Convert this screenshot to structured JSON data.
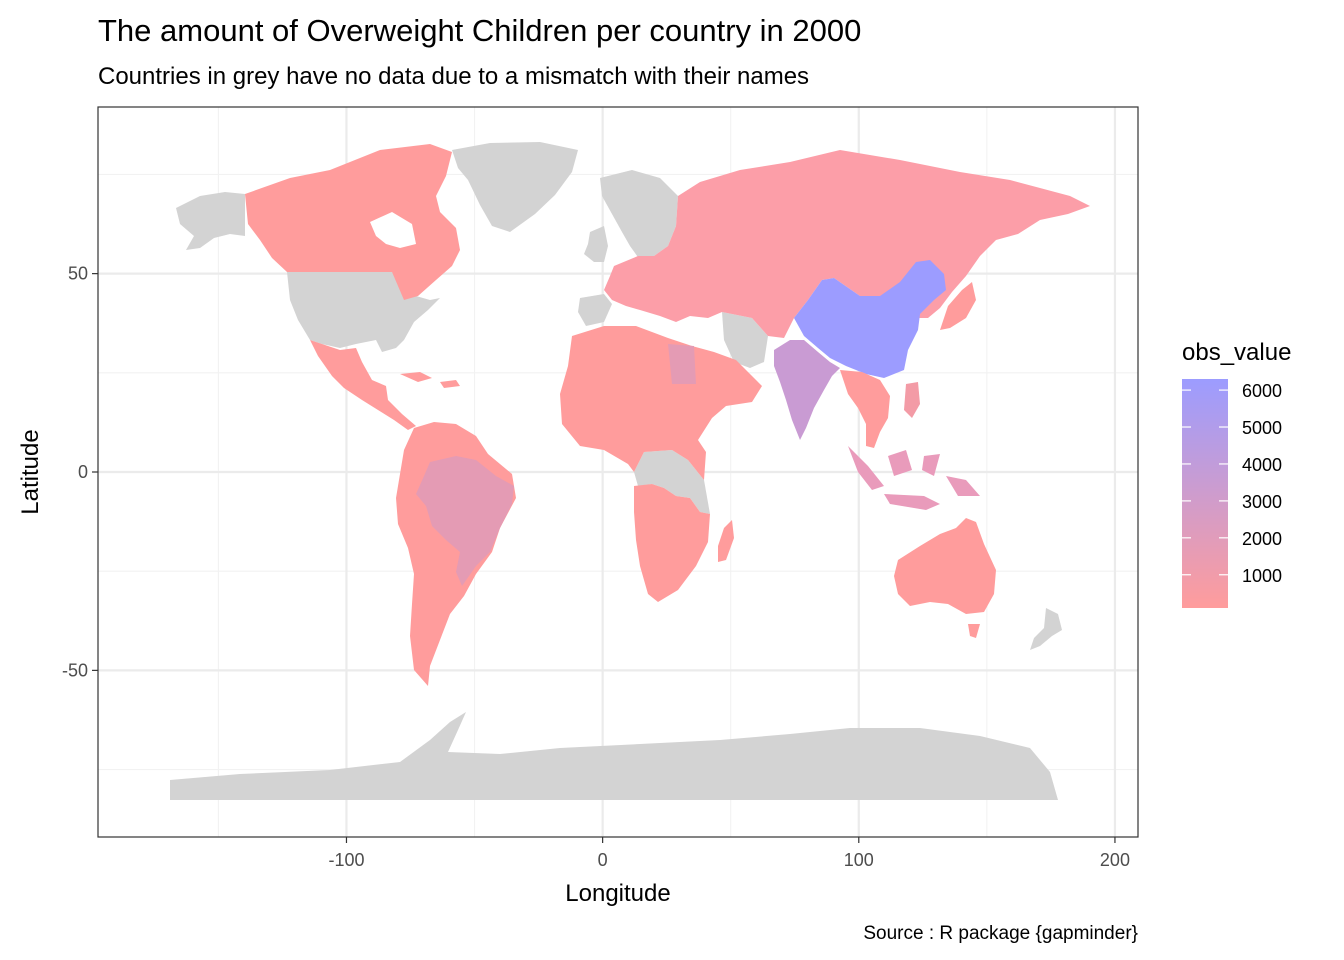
{
  "chart_data": {
    "type": "choropleth",
    "title": "The amount of Overweight Children per country in 2000",
    "subtitle": "Countries in grey have no data due to a mismatch with their names",
    "xlabel": "Longitude",
    "ylabel": "Latitude",
    "caption": "Source : R package {gapminder}",
    "xlim": [
      -197,
      209
    ],
    "ylim": [
      -92,
      92
    ],
    "x_ticks": [
      -100,
      0,
      100,
      200
    ],
    "y_ticks": [
      -50,
      0,
      50
    ],
    "x_tick_labels": [
      "-100",
      "0",
      "100",
      "200"
    ],
    "y_tick_labels": [
      "-50",
      "0",
      "50"
    ],
    "grid": true,
    "legend": {
      "title": "obs_value",
      "position": "right",
      "breaks": [
        6000,
        5000,
        4000,
        3000,
        2000,
        1000
      ],
      "labels": [
        "6000",
        "5000",
        "4000",
        "3000",
        "2000",
        "1000"
      ],
      "range": [
        100,
        6300
      ],
      "low_color": "#FF9C9C",
      "high_color": "#9C9CFF"
    },
    "no_data_color": "#D3D3D3",
    "regions": [
      {
        "name": "China",
        "value": 6000
      },
      {
        "name": "India",
        "value": 2900
      },
      {
        "name": "Indonesia",
        "value": 2400
      },
      {
        "name": "Brazil",
        "value": 2100
      },
      {
        "name": "Egypt",
        "value": 2000
      },
      {
        "name": "Philippines",
        "value": 1600
      },
      {
        "name": "Russia",
        "value": 1100
      },
      {
        "name": "Canada",
        "value": 200
      },
      {
        "name": "Australia",
        "value": 300
      },
      {
        "name": "Argentina",
        "value": 400
      },
      {
        "name": "Mexico",
        "value": 600
      },
      {
        "name": "Kazakhstan",
        "value": 300
      },
      {
        "name": "Algeria",
        "value": 500
      },
      {
        "name": "South Africa",
        "value": 800
      }
    ]
  }
}
